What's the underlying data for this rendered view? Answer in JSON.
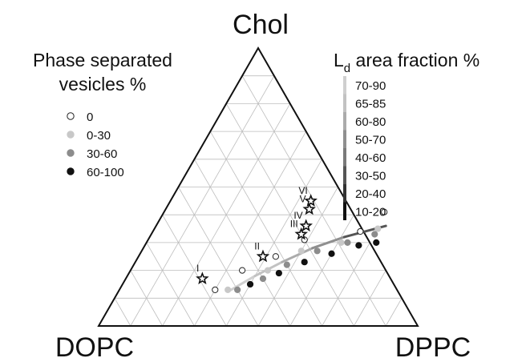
{
  "chart_data": {
    "type": "ternary-scatter",
    "vertices": {
      "top": "Chol",
      "left": "DOPC",
      "right": "DPPC"
    },
    "grid": true,
    "grid_step": 0.1,
    "legend_phase": {
      "title_line1": "Phase separated",
      "title_line2": "vesicles %",
      "placement": "top-left",
      "entries": [
        {
          "label": "0",
          "fill": "#ffffff",
          "stroke": "#222222"
        },
        {
          "label": "0-30",
          "fill": "#c8c8c8",
          "stroke": "#c8c8c8"
        },
        {
          "label": "30-60",
          "fill": "#8c8c8c",
          "stroke": "#8c8c8c"
        },
        {
          "label": "60-100",
          "fill": "#111111",
          "stroke": "#111111"
        }
      ]
    },
    "legend_area": {
      "title_main": "L",
      "title_sub": "d",
      "title_rest": " area fraction %",
      "placement": "top-right",
      "entries": [
        {
          "label": "70-90",
          "color": "#cfcfcf"
        },
        {
          "label": "65-85",
          "color": "#c2c2c2"
        },
        {
          "label": "60-80",
          "color": "#ababab"
        },
        {
          "label": "50-70",
          "color": "#8f8f8f"
        },
        {
          "label": "40-60",
          "color": "#7a7a7a"
        },
        {
          "label": "30-50",
          "color": "#555555"
        },
        {
          "label": "20-40",
          "color": "#333333"
        },
        {
          "label": "10-20",
          "color": "#111111"
        }
      ]
    },
    "points_order": [
      "chol",
      "dppc"
    ],
    "points": [
      {
        "chol": 0.13,
        "dppc": 0.3,
        "cat": "0"
      },
      {
        "chol": 0.2,
        "dppc": 0.35,
        "cat": "0"
      },
      {
        "chol": 0.25,
        "dppc": 0.43,
        "cat": "0"
      },
      {
        "chol": 0.31,
        "dppc": 0.49,
        "cat": "0"
      },
      {
        "chol": 0.34,
        "dppc": 0.65,
        "cat": "0"
      },
      {
        "chol": 0.41,
        "dppc": 0.69,
        "cat": "0"
      },
      {
        "chol": 0.13,
        "dppc": 0.34,
        "cat": "0-30"
      },
      {
        "chol": 0.2,
        "dppc": 0.43,
        "cat": "0-30"
      },
      {
        "chol": 0.27,
        "dppc": 0.5,
        "cat": "0-30"
      },
      {
        "chol": 0.3,
        "dppc": 0.61,
        "cat": "0-30"
      },
      {
        "chol": 0.35,
        "dppc": 0.7,
        "cat": "0-30"
      },
      {
        "chol": 0.13,
        "dppc": 0.37,
        "cat": "30-60"
      },
      {
        "chol": 0.17,
        "dppc": 0.43,
        "cat": "30-60"
      },
      {
        "chol": 0.22,
        "dppc": 0.48,
        "cat": "30-60"
      },
      {
        "chol": 0.27,
        "dppc": 0.55,
        "cat": "30-60"
      },
      {
        "chol": 0.3,
        "dppc": 0.63,
        "cat": "30-60"
      },
      {
        "chol": 0.33,
        "dppc": 0.7,
        "cat": "30-60"
      },
      {
        "chol": 0.15,
        "dppc": 0.4,
        "cat": "60-100"
      },
      {
        "chol": 0.19,
        "dppc": 0.47,
        "cat": "60-100"
      },
      {
        "chol": 0.23,
        "dppc": 0.53,
        "cat": "60-100"
      },
      {
        "chol": 0.26,
        "dppc": 0.6,
        "cat": "60-100"
      },
      {
        "chol": 0.29,
        "dppc": 0.67,
        "cat": "60-100"
      },
      {
        "chol": 0.3,
        "dppc": 0.72,
        "cat": "60-100"
      }
    ],
    "stars": [
      {
        "label": "I",
        "chol": 0.17,
        "dppc": 0.24
      },
      {
        "label": "II",
        "chol": 0.25,
        "dppc": 0.39
      },
      {
        "label": "III",
        "chol": 0.33,
        "dppc": 0.47
      },
      {
        "label": "IV",
        "chol": 0.36,
        "dppc": 0.47
      },
      {
        "label": "V",
        "chol": 0.42,
        "dppc": 0.45
      },
      {
        "label": "VI",
        "chol": 0.45,
        "dppc": 0.44
      }
    ],
    "tieline": {
      "chol": [
        0.13,
        0.18,
        0.23,
        0.28,
        0.32,
        0.36
      ],
      "dppc": [
        0.35,
        0.4,
        0.46,
        0.53,
        0.61,
        0.72
      ],
      "colors": [
        "#cfcfcf",
        "#c2c2c2",
        "#ababab",
        "#8f8f8f",
        "#555555",
        "#222222"
      ]
    }
  }
}
